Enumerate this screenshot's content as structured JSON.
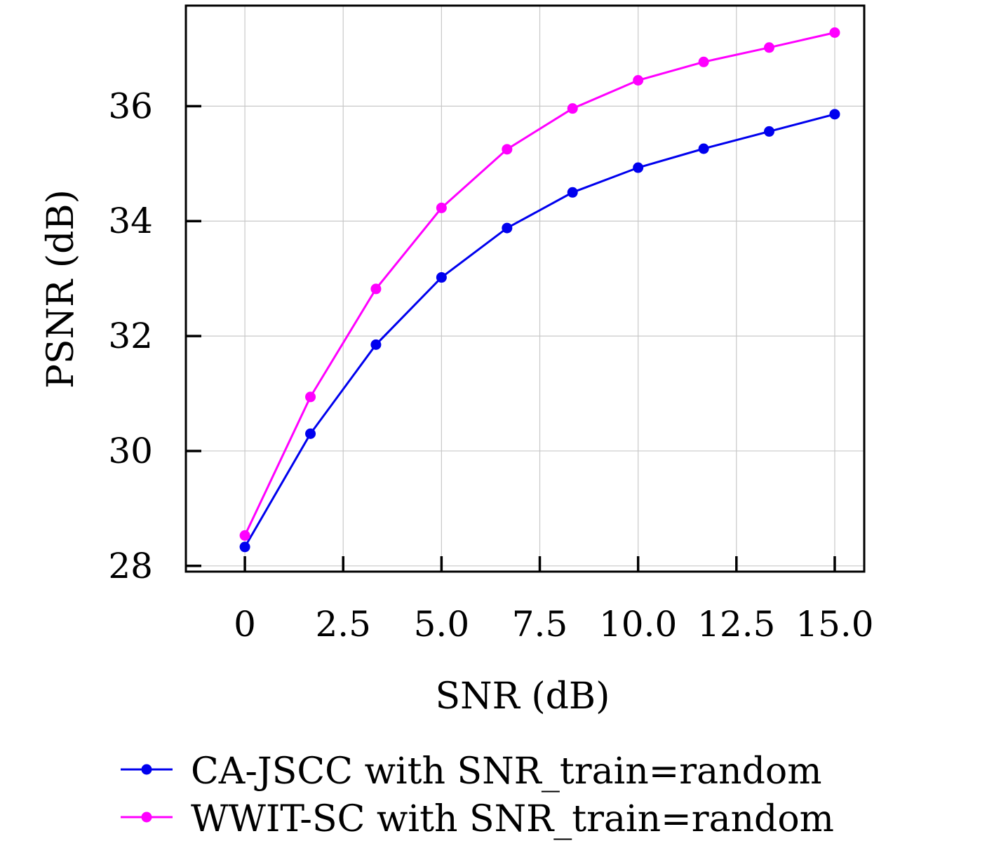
{
  "chart_data": {
    "type": "line",
    "title": "",
    "xlabel": "SNR (dB)",
    "ylabel": "PSNR (dB)",
    "xlim": [
      -1.5,
      15.75
    ],
    "ylim": [
      27.9,
      37.75
    ],
    "x_ticks": [
      0,
      2.5,
      5.0,
      7.5,
      10.0,
      12.5,
      15.0
    ],
    "x_tick_labels": [
      "0",
      "2.5",
      "5.0",
      "7.5",
      "10.0",
      "12.5",
      "15.0"
    ],
    "y_ticks": [
      28,
      30,
      32,
      34,
      36
    ],
    "y_tick_labels": [
      "28",
      "30",
      "32",
      "34",
      "36"
    ],
    "grid": true,
    "legend_position": "bottom",
    "x": [
      0,
      1.667,
      3.333,
      5.0,
      6.667,
      8.333,
      10.0,
      11.667,
      13.333,
      15.0
    ],
    "series": [
      {
        "name": "CA-JSCC with SNR_train=random",
        "color": "#0000ee",
        "values": [
          28.33,
          30.3,
          31.85,
          33.02,
          33.88,
          34.5,
          34.93,
          35.26,
          35.56,
          35.86
        ]
      },
      {
        "name": "WWIT-SC with SNR_train=random",
        "color": "#ff00ff",
        "values": [
          28.53,
          30.94,
          32.82,
          34.23,
          35.25,
          35.96,
          36.45,
          36.77,
          37.02,
          37.28
        ]
      }
    ]
  }
}
